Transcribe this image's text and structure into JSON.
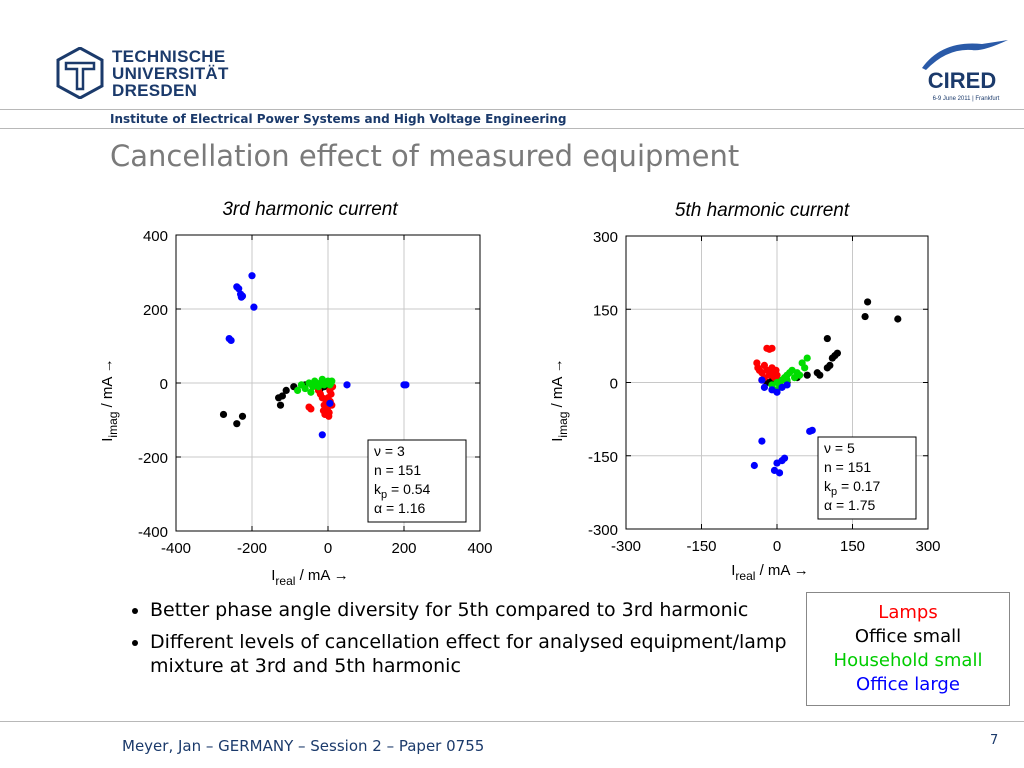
{
  "header": {
    "university_lines": [
      "TECHNISCHE",
      "UNIVERSITÄT",
      "DRESDEN"
    ],
    "conference_logo_text": "CIRED",
    "conference_logo_subtext": "6-9 June 2011 | Frankfurt",
    "institute": "Institute of Electrical Power Systems and High Voltage Engineering"
  },
  "slide": {
    "title": "Cancellation effect of measured equipment",
    "bullets": [
      "Better phase angle diversity for 5th compared to 3rd harmonic",
      "Different levels of cancellation effect for analysed equipment/lamp mixture at 3rd and 5th harmonic"
    ]
  },
  "legend": {
    "items": [
      {
        "label": "Lamps",
        "color": "#ff0000"
      },
      {
        "label": "Office small",
        "color": "#000000"
      },
      {
        "label": "Household small",
        "color": "#00cc00"
      },
      {
        "label": "Office large",
        "color": "#0000ff"
      }
    ]
  },
  "footer": {
    "text": "Meyer, Jan – GERMANY – Session 2 – Paper 0755",
    "page": "7"
  },
  "chart_data": [
    {
      "type": "scatter",
      "title": "3rd harmonic current",
      "xlabel_main": "I",
      "xlabel_sub": "real",
      "xlabel_unit": " / mA →",
      "ylabel_main": "I",
      "ylabel_sub": "imag",
      "ylabel_unit": " / mA →",
      "xlim": [
        -400,
        400
      ],
      "ylim": [
        -400,
        400
      ],
      "xticks": [
        -400,
        -200,
        0,
        200,
        400
      ],
      "yticks": [
        -400,
        -200,
        0,
        200,
        400
      ],
      "grid": true,
      "params": [
        {
          "sym": "ν",
          "sub": "",
          "val": "= 3"
        },
        {
          "sym": "n",
          "sub": "",
          "val": "= 151"
        },
        {
          "sym": "k",
          "sub": "p",
          "val": "= 0.54"
        },
        {
          "sym": "α",
          "sub": "",
          "val": "= 1.16"
        }
      ],
      "series": [
        {
          "color": "#000000",
          "points": [
            [
              -275,
              -85
            ],
            [
              -240,
              -110
            ],
            [
              -225,
              -90
            ],
            [
              -130,
              -40
            ],
            [
              -125,
              -60
            ],
            [
              -120,
              -35
            ],
            [
              -110,
              -20
            ],
            [
              -90,
              -10
            ],
            [
              -60,
              -5
            ],
            [
              -40,
              -8
            ],
            [
              -20,
              -15
            ],
            [
              -10,
              -10
            ],
            [
              -5,
              -5
            ]
          ]
        },
        {
          "color": "#ff0000",
          "points": [
            [
              -50,
              -65
            ],
            [
              -45,
              -70
            ],
            [
              -20,
              -30
            ],
            [
              -15,
              -40
            ],
            [
              -10,
              -60
            ],
            [
              -8,
              -85
            ],
            [
              -5,
              -50
            ],
            [
              -2,
              -70
            ],
            [
              0,
              -40
            ],
            [
              3,
              -80
            ],
            [
              5,
              -20
            ],
            [
              8,
              -30
            ],
            [
              10,
              -60
            ],
            [
              12,
              -10
            ],
            [
              -25,
              -20
            ],
            [
              -12,
              -75
            ],
            [
              2,
              -90
            ],
            [
              6,
              -50
            ]
          ]
        },
        {
          "color": "#00dd00",
          "points": [
            [
              -80,
              -20
            ],
            [
              -70,
              -5
            ],
            [
              -60,
              -15
            ],
            [
              -50,
              0
            ],
            [
              -40,
              -10
            ],
            [
              -35,
              5
            ],
            [
              -30,
              -5
            ],
            [
              -20,
              0
            ],
            [
              -15,
              10
            ],
            [
              -10,
              -5
            ],
            [
              -5,
              0
            ],
            [
              0,
              5
            ],
            [
              5,
              -5
            ],
            [
              8,
              0
            ],
            [
              10,
              5
            ],
            [
              -25,
              -10
            ],
            [
              -45,
              -25
            ]
          ]
        },
        {
          "color": "#0000ff",
          "points": [
            [
              -260,
              120
            ],
            [
              -255,
              115
            ],
            [
              -240,
              260
            ],
            [
              -235,
              255
            ],
            [
              -230,
              240
            ],
            [
              -228,
              232
            ],
            [
              -225,
              235
            ],
            [
              -200,
              290
            ],
            [
              -195,
              205
            ],
            [
              -15,
              -140
            ],
            [
              5,
              -55
            ],
            [
              50,
              -5
            ],
            [
              200,
              -5
            ],
            [
              205,
              -5
            ]
          ]
        }
      ]
    },
    {
      "type": "scatter",
      "title": "5th harmonic current",
      "xlabel_main": "I",
      "xlabel_sub": "real",
      "xlabel_unit": " / mA →",
      "ylabel_main": "I",
      "ylabel_sub": "imag",
      "ylabel_unit": " / mA →",
      "xlim": [
        -300,
        300
      ],
      "ylim": [
        -300,
        300
      ],
      "xticks": [
        -300,
        -150,
        0,
        150,
        300
      ],
      "yticks": [
        -300,
        -150,
        0,
        150,
        300
      ],
      "grid": true,
      "params": [
        {
          "sym": "ν",
          "sub": "",
          "val": "= 5"
        },
        {
          "sym": "n",
          "sub": "",
          "val": "= 151"
        },
        {
          "sym": "k",
          "sub": "p",
          "val": "= 0.17"
        },
        {
          "sym": "α",
          "sub": "",
          "val": "= 1.75"
        }
      ],
      "series": [
        {
          "color": "#000000",
          "points": [
            [
              -20,
              0
            ],
            [
              -10,
              5
            ],
            [
              0,
              5
            ],
            [
              20,
              0
            ],
            [
              40,
              10
            ],
            [
              60,
              15
            ],
            [
              80,
              20
            ],
            [
              85,
              15
            ],
            [
              100,
              30
            ],
            [
              105,
              35
            ],
            [
              110,
              50
            ],
            [
              115,
              55
            ],
            [
              120,
              60
            ],
            [
              100,
              90
            ],
            [
              180,
              165
            ],
            [
              175,
              135
            ],
            [
              240,
              130
            ]
          ]
        },
        {
          "color": "#ff0000",
          "points": [
            [
              -40,
              40
            ],
            [
              -38,
              30
            ],
            [
              -35,
              25
            ],
            [
              -30,
              20
            ],
            [
              -25,
              35
            ],
            [
              -20,
              25
            ],
            [
              -15,
              15
            ],
            [
              -10,
              30
            ],
            [
              -8,
              20
            ],
            [
              -5,
              10
            ],
            [
              -2,
              25
            ],
            [
              0,
              15
            ],
            [
              -20,
              70
            ],
            [
              -15,
              68
            ],
            [
              -10,
              70
            ],
            [
              -30,
              5
            ],
            [
              -25,
              10
            ],
            [
              2,
              5
            ]
          ]
        },
        {
          "color": "#00dd00",
          "points": [
            [
              -10,
              -5
            ],
            [
              0,
              0
            ],
            [
              5,
              -3
            ],
            [
              10,
              5
            ],
            [
              15,
              10
            ],
            [
              20,
              15
            ],
            [
              25,
              20
            ],
            [
              30,
              25
            ],
            [
              35,
              10
            ],
            [
              40,
              20
            ],
            [
              45,
              15
            ],
            [
              50,
              40
            ],
            [
              55,
              30
            ],
            [
              60,
              50
            ],
            [
              5,
              -10
            ],
            [
              -5,
              -15
            ],
            [
              20,
              5
            ]
          ]
        },
        {
          "color": "#0000ff",
          "points": [
            [
              -30,
              5
            ],
            [
              -25,
              -10
            ],
            [
              -10,
              -15
            ],
            [
              0,
              -20
            ],
            [
              10,
              -10
            ],
            [
              20,
              -5
            ],
            [
              -45,
              -170
            ],
            [
              -30,
              -120
            ],
            [
              -5,
              -180
            ],
            [
              0,
              -165
            ],
            [
              10,
              -160
            ],
            [
              15,
              -155
            ],
            [
              5,
              -185
            ],
            [
              65,
              -100
            ],
            [
              70,
              -98
            ]
          ]
        }
      ]
    }
  ]
}
